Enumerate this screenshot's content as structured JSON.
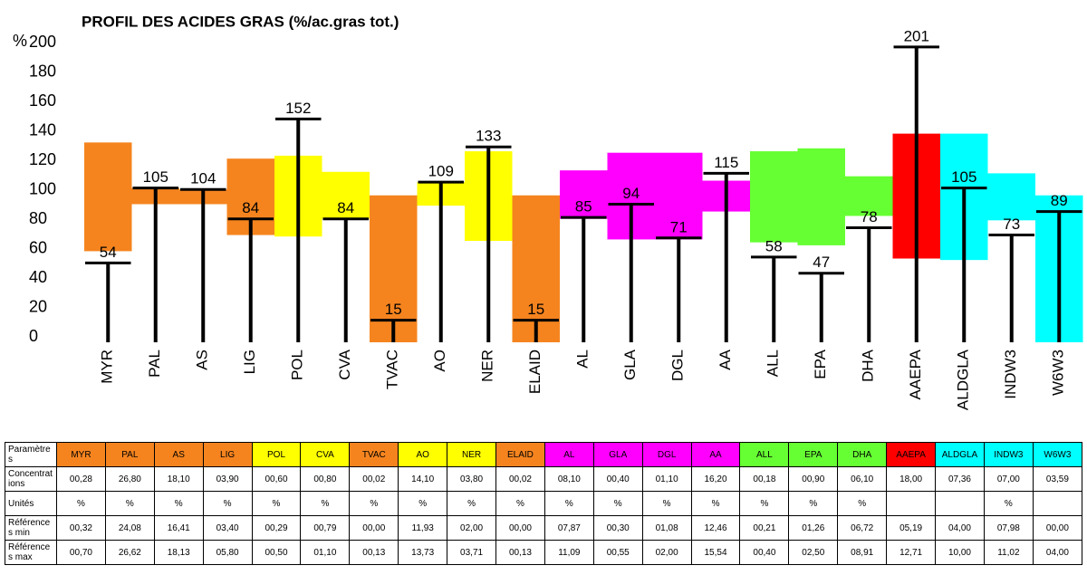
{
  "chart_data": {
    "type": "range-marker",
    "title": "PROFIL DES ACIDES GRAS (%/ac.gras tot.)",
    "y_label": "%",
    "categories": [
      "MYR",
      "PAL",
      "AS",
      "LIG",
      "POL",
      "CVA",
      "TVAC",
      "AO",
      "NER",
      "ELAID",
      "AL",
      "GLA",
      "DGL",
      "AA",
      "ALL",
      "EPA",
      "DHA",
      "AAEPA",
      "ALDGLA",
      "INDW3",
      "W6W3"
    ],
    "values": [
      54,
      105,
      104,
      84,
      152,
      84,
      15,
      109,
      133,
      15,
      85,
      94,
      71,
      115,
      58,
      47,
      78,
      201,
      105,
      73,
      89
    ],
    "ranges": [
      [
        62,
        136
      ],
      [
        94,
        105
      ],
      [
        94,
        104
      ],
      [
        73,
        125
      ],
      [
        72,
        127
      ],
      [
        84,
        116
      ],
      [
        0,
        100
      ],
      [
        93,
        109
      ],
      [
        69,
        130
      ],
      [
        0,
        100
      ],
      [
        84,
        117
      ],
      [
        70,
        129
      ],
      [
        70,
        129
      ],
      [
        89,
        110
      ],
      [
        68,
        130
      ],
      [
        66,
        132
      ],
      [
        86,
        113
      ],
      [
        57,
        142
      ],
      [
        56,
        142
      ],
      [
        83,
        115
      ],
      [
        0,
        100
      ]
    ],
    "colors": [
      "#f5841f",
      "#f5841f",
      "#f5841f",
      "#f5841f",
      "#ffff00",
      "#ffff00",
      "#f5841f",
      "#ffff00",
      "#ffff00",
      "#f5841f",
      "#ff00ff",
      "#ff00ff",
      "#ff00ff",
      "#ff00ff",
      "#66ff33",
      "#66ff33",
      "#66ff33",
      "#ff0000",
      "#00ffff",
      "#00ffff",
      "#00ffff"
    ],
    "ylim": [
      0,
      204
    ],
    "yticks": [
      0,
      20,
      40,
      60,
      80,
      100,
      120,
      140,
      160,
      180,
      200
    ],
    "grid": false
  },
  "table": {
    "rows": [
      {
        "label": "Paramètres"
      },
      {
        "label": "Concentrations",
        "cells": [
          "00,28",
          "26,80",
          "18,10",
          "03,90",
          "00,60",
          "00,80",
          "00,02",
          "14,10",
          "03,80",
          "00,02",
          "08,10",
          "00,40",
          "01,10",
          "16,20",
          "00,18",
          "00,90",
          "06,10",
          "18,00",
          "07,36",
          "07,00",
          "03,59"
        ]
      },
      {
        "label": "Unités",
        "cells": [
          "%",
          "%",
          "%",
          "%",
          "%",
          "%",
          "%",
          "%",
          "%",
          "%",
          "%",
          "%",
          "%",
          "%",
          "%",
          "%",
          "%",
          null,
          null,
          "%",
          null
        ]
      },
      {
        "label": "Références min",
        "cells": [
          "00,32",
          "24,08",
          "16,41",
          "03,40",
          "00,29",
          "00,79",
          "00,00",
          "11,93",
          "02,00",
          "00,00",
          "07,87",
          "00,30",
          "01,08",
          "12,46",
          "00,21",
          "01,26",
          "06,72",
          "05,19",
          "04,00",
          "07,98",
          "00,00"
        ]
      },
      {
        "label": "Références max",
        "cells": [
          "00,70",
          "26,62",
          "18,13",
          "05,80",
          "00,50",
          "01,10",
          "00,13",
          "13,73",
          "03,71",
          "00,13",
          "11,09",
          "00,55",
          "02,00",
          "15,54",
          "00,40",
          "02,50",
          "08,91",
          "12,71",
          "10,00",
          "11,02",
          "04,00"
        ]
      }
    ]
  }
}
